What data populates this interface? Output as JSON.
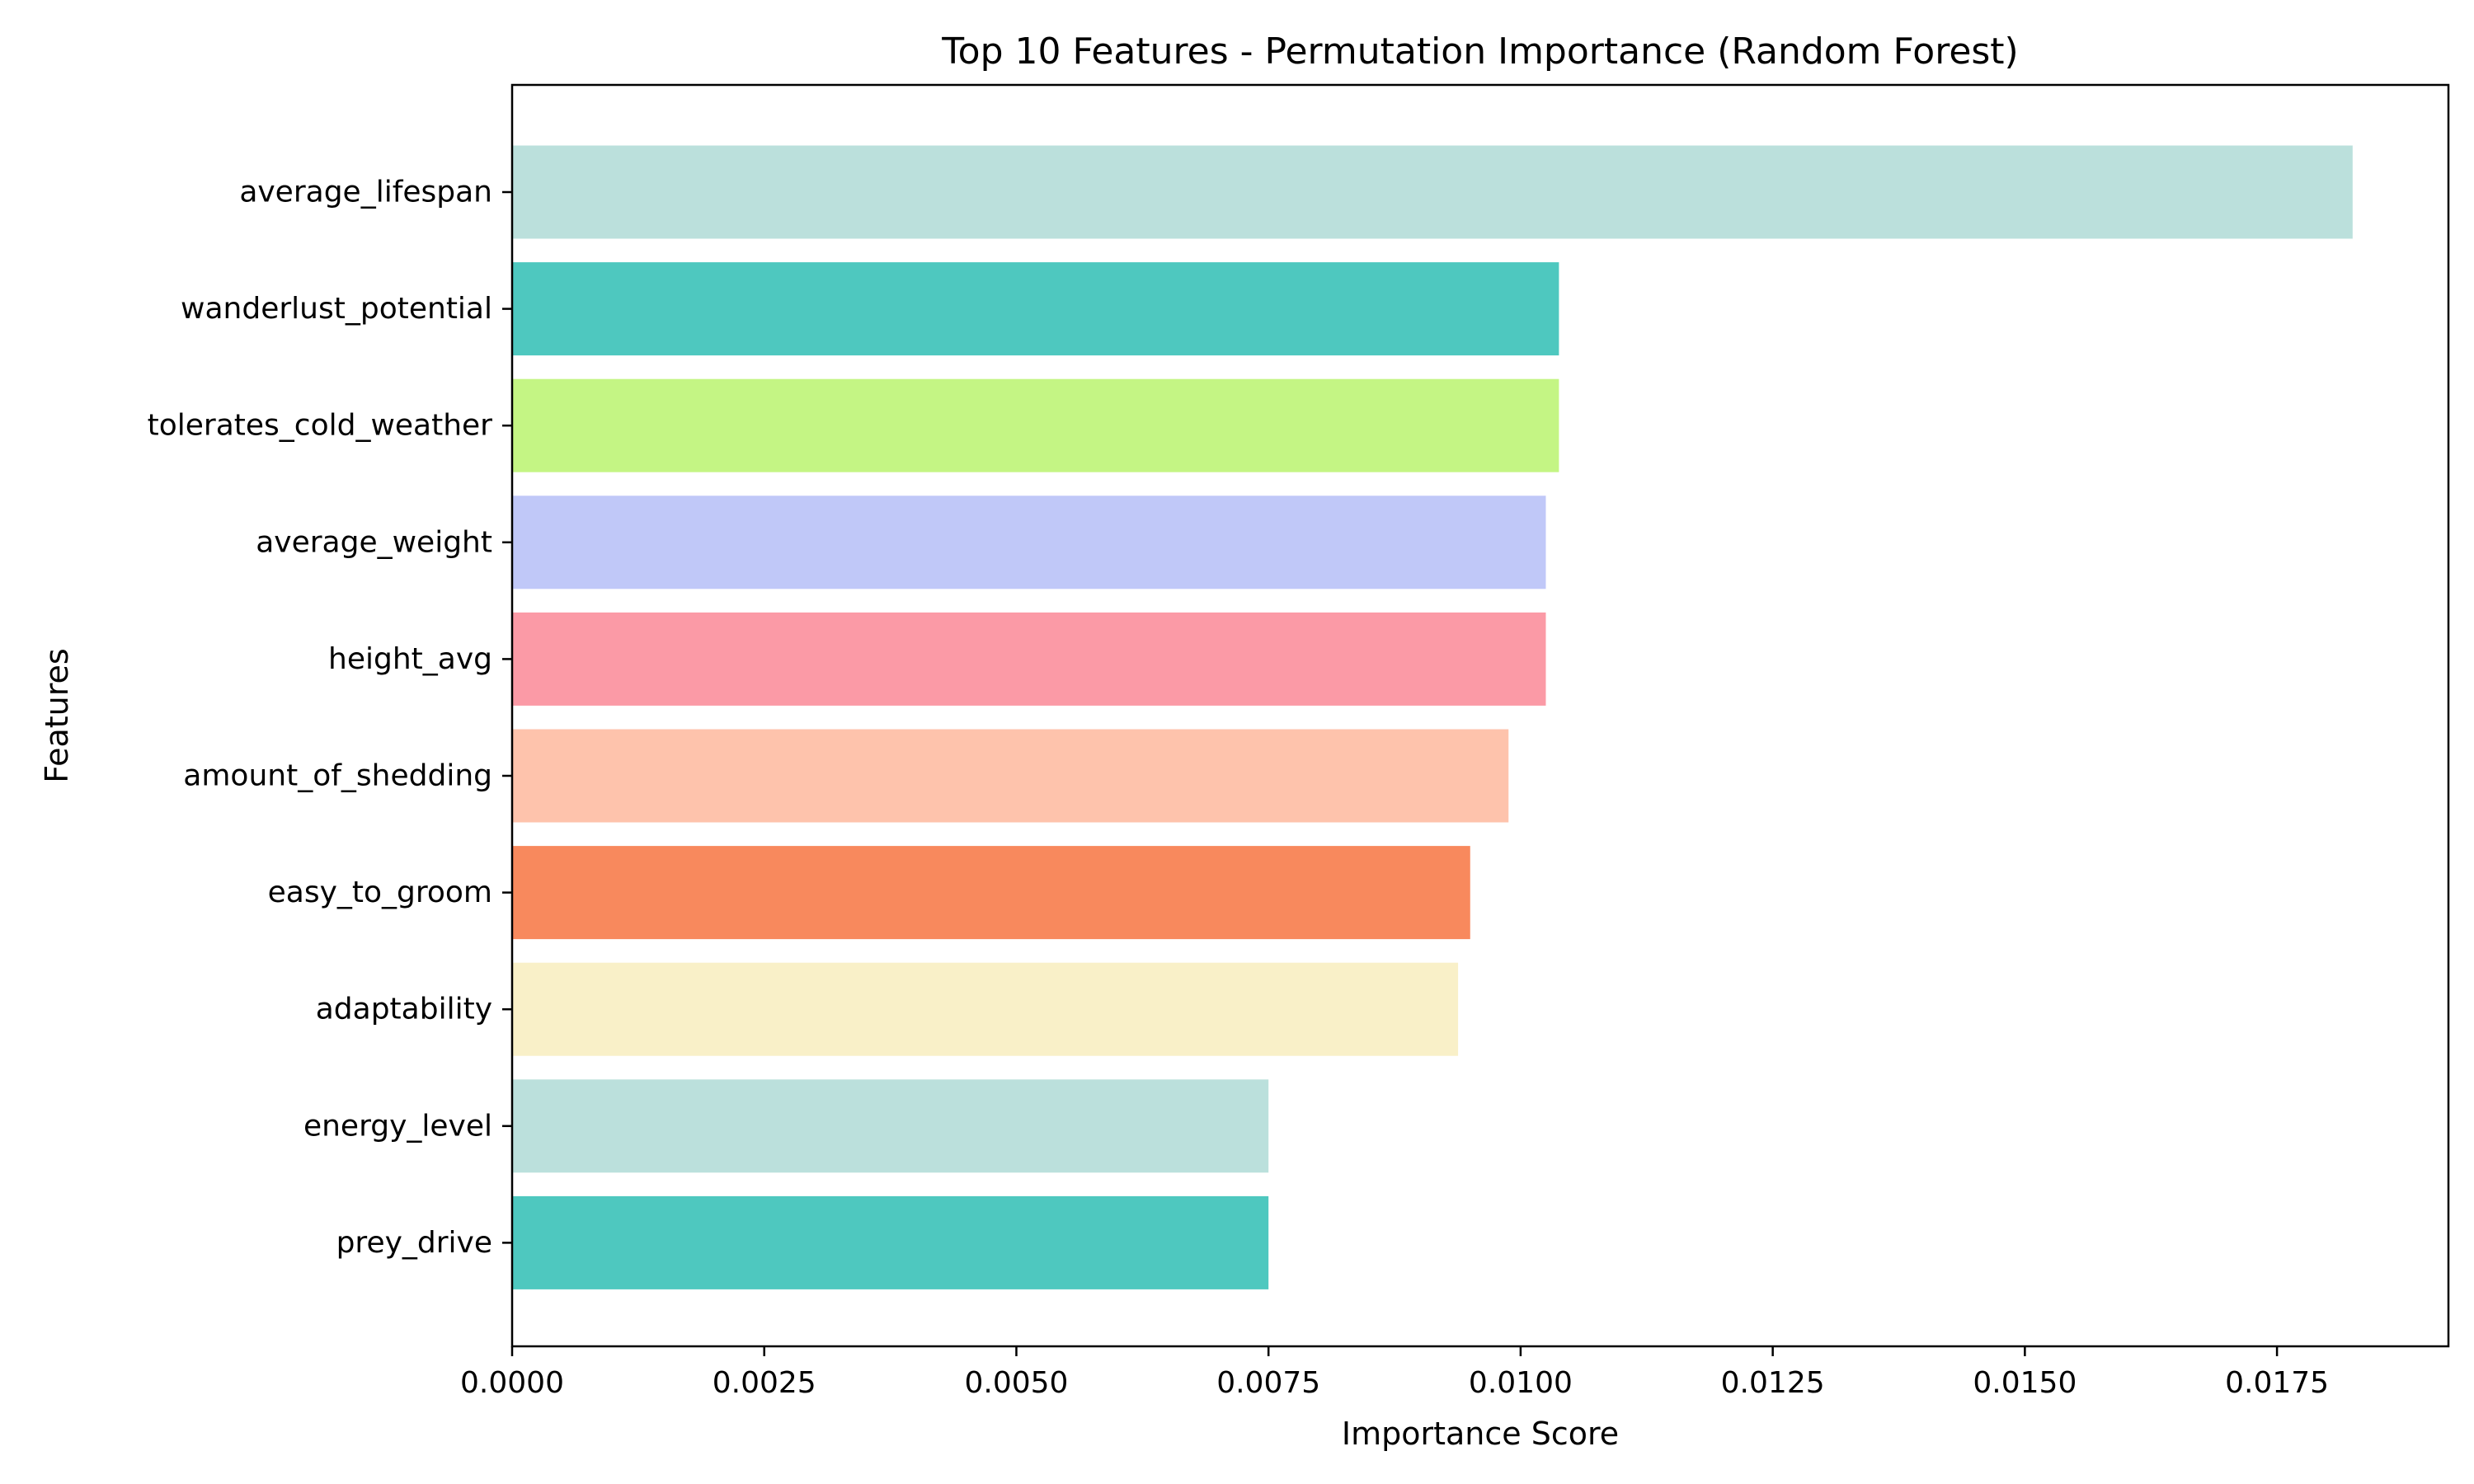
{
  "chart_data": {
    "type": "bar",
    "orientation": "horizontal",
    "title": "Top 10 Features - Permutation Importance (Random Forest)",
    "xlabel": "Importance Score",
    "ylabel": "Features",
    "xlim": [
      0,
      0.0192
    ],
    "x_ticks": [
      "0.0000",
      "0.0025",
      "0.0050",
      "0.0075",
      "0.0100",
      "0.0125",
      "0.0150",
      "0.0175"
    ],
    "x_tick_values": [
      0,
      0.0025,
      0.005,
      0.0075,
      0.01,
      0.0125,
      0.015,
      0.0175
    ],
    "grid": false,
    "categories": [
      "average_lifespan",
      "wanderlust_potential",
      "tolerates_cold_weather",
      "average_weight",
      "height_avg",
      "amount_of_shedding",
      "easy_to_groom",
      "adaptability",
      "energy_level",
      "prey_drive"
    ],
    "values": [
      0.01825,
      0.01038,
      0.01038,
      0.01025,
      0.01025,
      0.00988,
      0.0095,
      0.00938,
      0.0075,
      0.0075
    ],
    "colors": [
      "#bbe0dc",
      "#4ec8bf",
      "#c4f584",
      "#c0c8f8",
      "#fb9aa6",
      "#fec3ac",
      "#f8895d",
      "#f9f0c8",
      "#bbe0dc",
      "#4ec8bf"
    ]
  }
}
